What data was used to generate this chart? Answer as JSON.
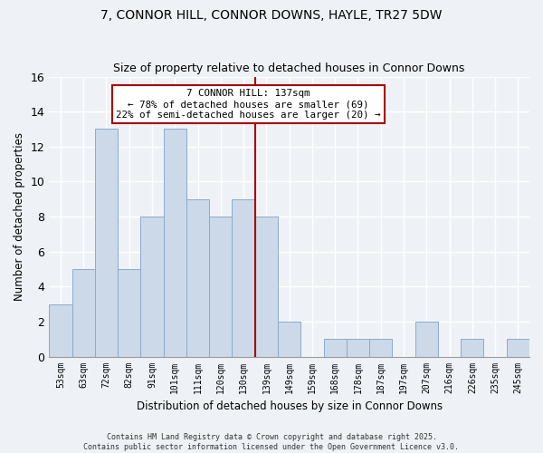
{
  "title": "7, CONNOR HILL, CONNOR DOWNS, HAYLE, TR27 5DW",
  "subtitle": "Size of property relative to detached houses in Connor Downs",
  "xlabel": "Distribution of detached houses by size in Connor Downs",
  "ylabel": "Number of detached properties",
  "bar_color": "#ccd9e8",
  "bar_edge_color": "#8aabcc",
  "background_color": "#eef2f7",
  "grid_color": "#ffffff",
  "categories": [
    "53sqm",
    "63sqm",
    "72sqm",
    "82sqm",
    "91sqm",
    "101sqm",
    "111sqm",
    "120sqm",
    "130sqm",
    "139sqm",
    "149sqm",
    "159sqm",
    "168sqm",
    "178sqm",
    "187sqm",
    "197sqm",
    "207sqm",
    "216sqm",
    "226sqm",
    "235sqm",
    "245sqm"
  ],
  "values": [
    3,
    5,
    13,
    5,
    8,
    13,
    9,
    8,
    9,
    8,
    2,
    0,
    1,
    1,
    1,
    0,
    2,
    0,
    1,
    0,
    1
  ],
  "ylim": [
    0,
    16
  ],
  "yticks": [
    0,
    2,
    4,
    6,
    8,
    10,
    12,
    14,
    16
  ],
  "vline_x_idx": 9,
  "vline_color": "#aa0000",
  "annotation_text": "7 CONNOR HILL: 137sqm\n← 78% of detached houses are smaller (69)\n22% of semi-detached houses are larger (20) →",
  "footer_line1": "Contains HM Land Registry data © Crown copyright and database right 2025.",
  "footer_line2": "Contains public sector information licensed under the Open Government Licence v3.0."
}
